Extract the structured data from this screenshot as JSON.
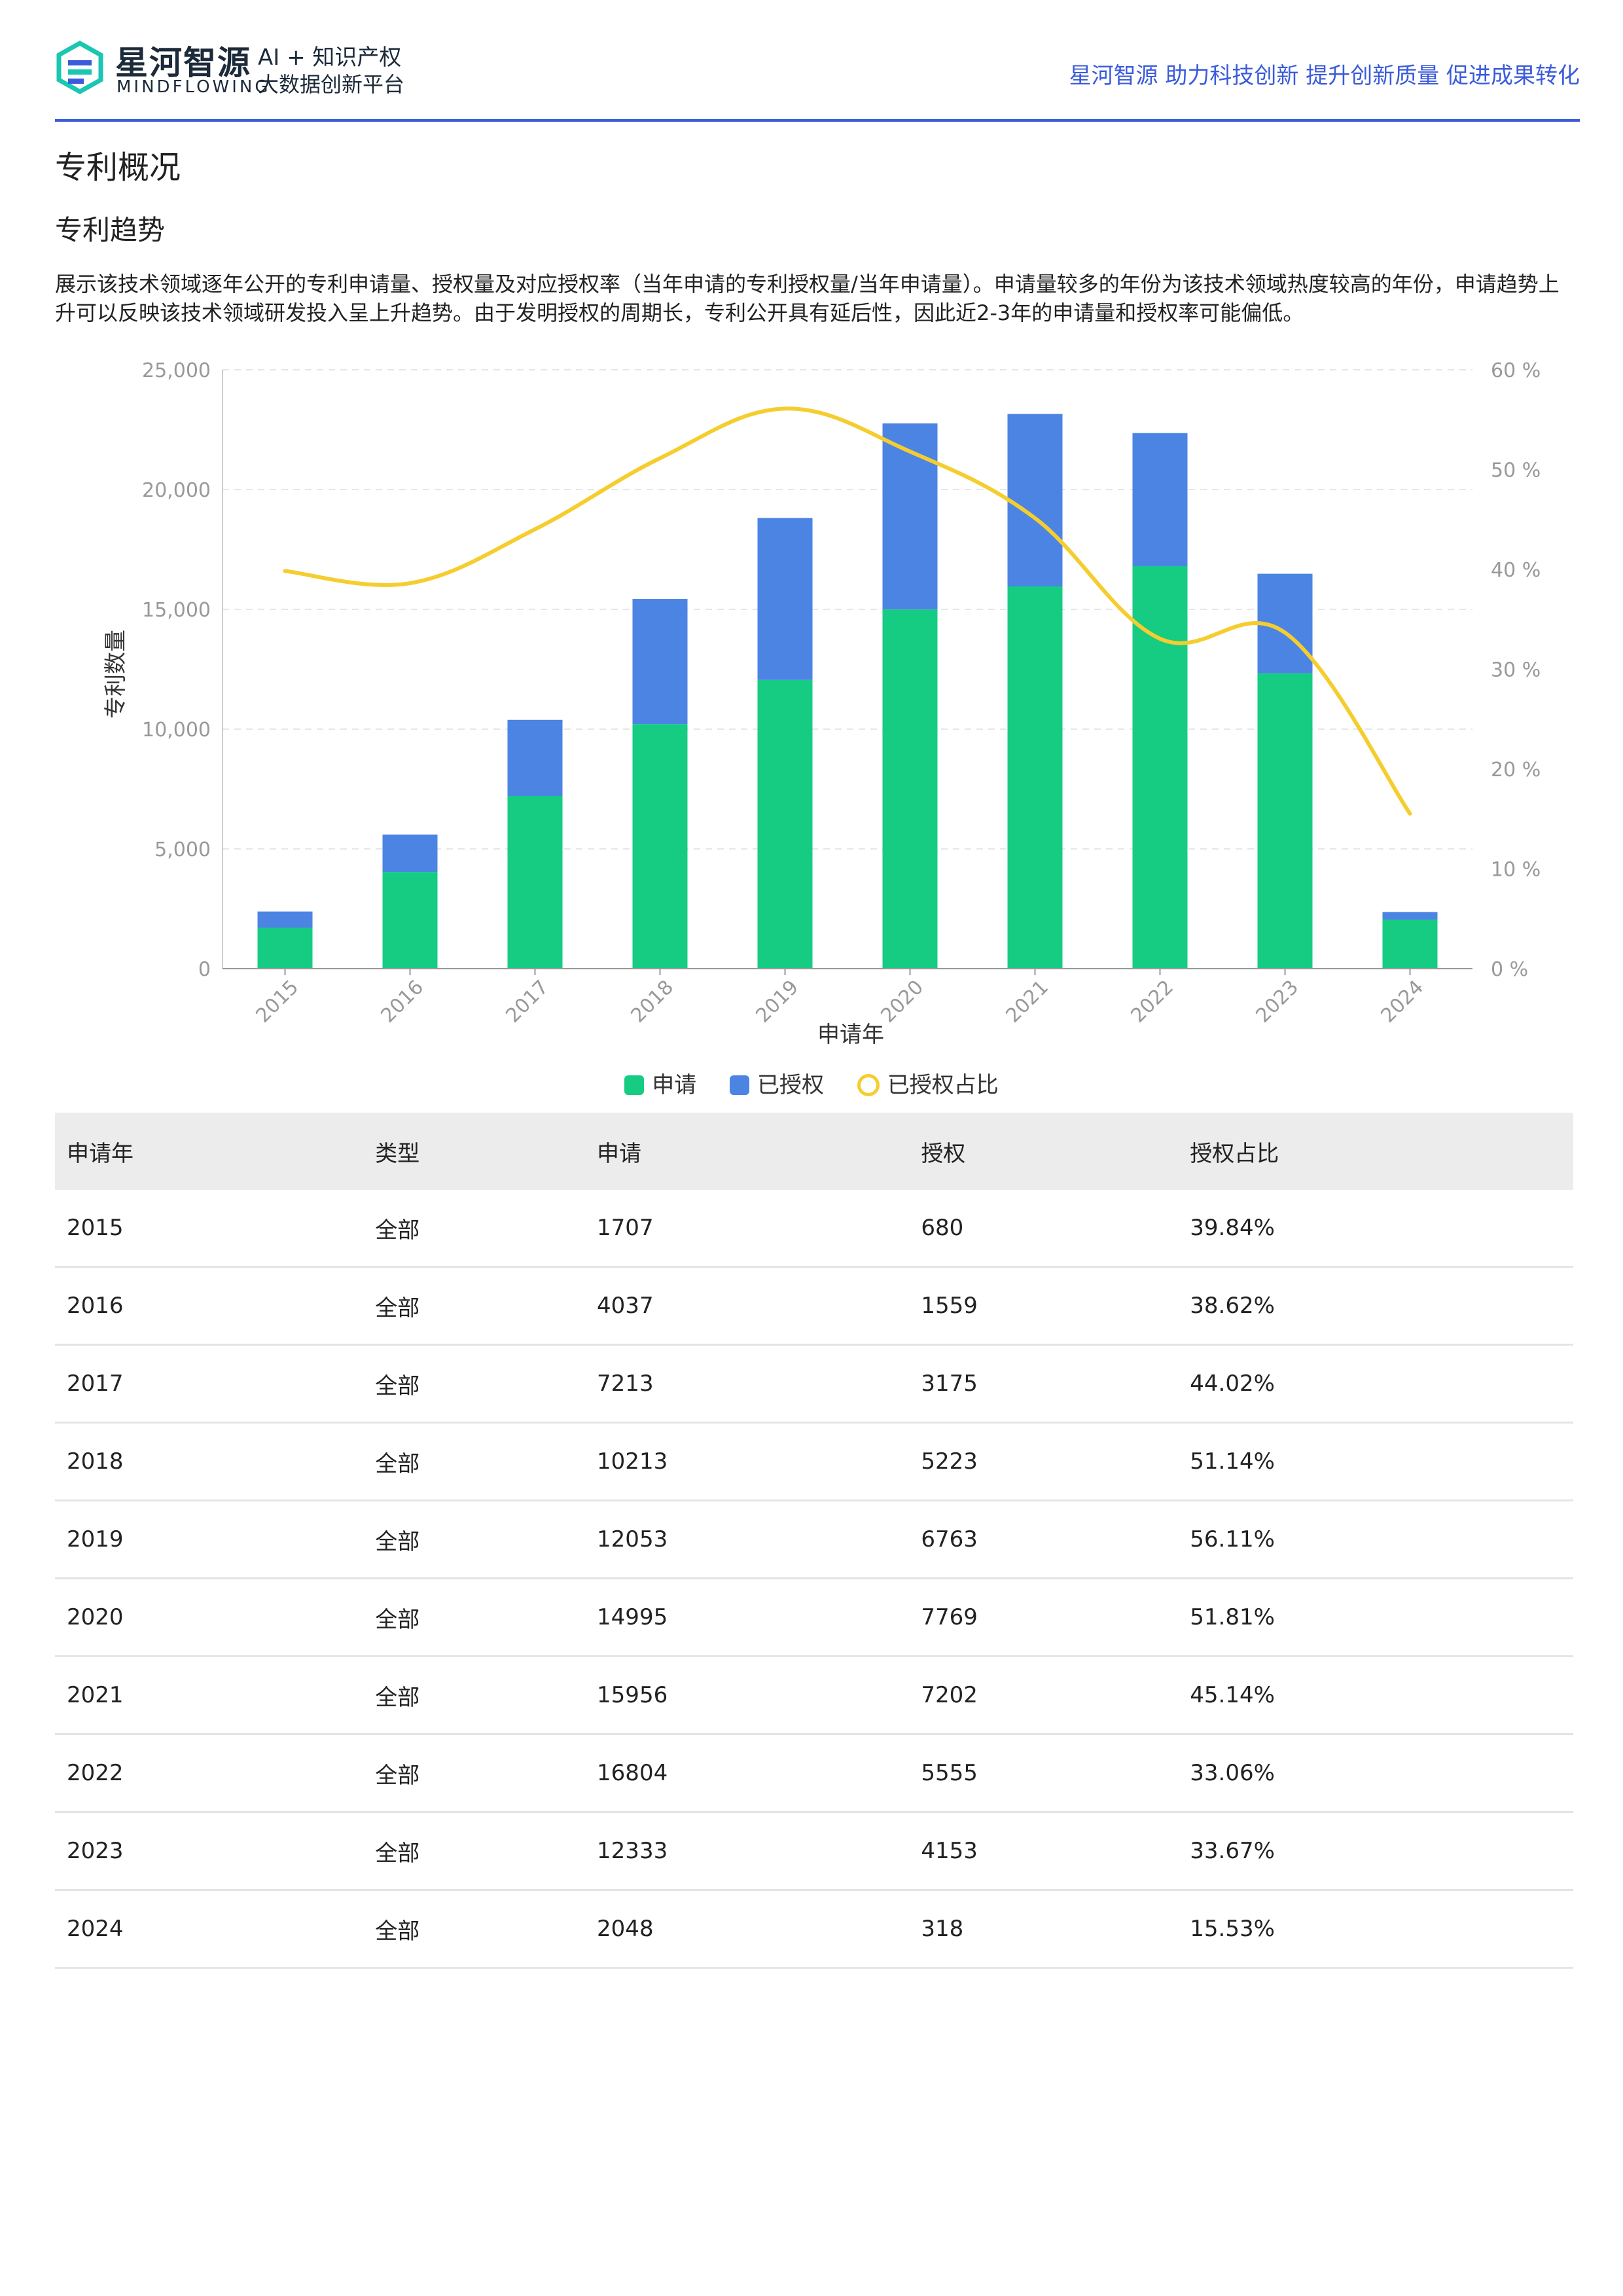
{
  "header": {
    "brand_cn": "星河智源",
    "brand_en": "MINDFLOWING",
    "tagline_1": "AI + 知识产权",
    "tagline_2": "大数据创新平台",
    "slogan": "星河智源 助力科技创新 提升创新质量 促进成果转化",
    "brand_color": "#3b5bdb"
  },
  "section_title": "专利概况",
  "subsection_title": "专利趋势",
  "description": "展示该技术领域逐年公开的专利申请量、授权量及对应授权率（当年申请的专利授权量/当年申请量）。申请量较多的年份为该技术领域热度较高的年份，申请趋势上升可以反映该技术领域研发投入呈上升趋势。由于发明授权的周期长，专利公开具有延后性，因此近2-3年的申请量和授权率可能偏低。",
  "chart_data": {
    "type": "bar",
    "stacked": true,
    "categories": [
      "2015",
      "2016",
      "2017",
      "2018",
      "2019",
      "2020",
      "2021",
      "2022",
      "2023",
      "2024"
    ],
    "series": [
      {
        "name": "申请",
        "type": "bar",
        "axis": "left",
        "color": "#16cc83",
        "values": [
          1707,
          4037,
          7213,
          10213,
          12053,
          14995,
          15956,
          16804,
          12333,
          2048
        ]
      },
      {
        "name": "已授权",
        "type": "bar",
        "axis": "left",
        "color": "#4c84e4",
        "values": [
          680,
          1559,
          3175,
          5223,
          6763,
          7769,
          7202,
          5555,
          4153,
          318
        ]
      },
      {
        "name": "已授权占比",
        "type": "line",
        "axis": "right",
        "color": "#f5cd2e",
        "values": [
          39.84,
          38.62,
          44.02,
          51.14,
          56.11,
          51.81,
          45.14,
          33.06,
          33.67,
          15.53
        ]
      }
    ],
    "xlabel": "申请年",
    "ylabel": "专利数量",
    "ylim": [
      0,
      25000
    ],
    "y_ticks": [
      "0",
      "5,000",
      "10,000",
      "15,000",
      "20,000",
      "25,000"
    ],
    "y2lim": [
      0,
      60
    ],
    "y2_ticks": [
      "0 %",
      "10 %",
      "20 %",
      "30 %",
      "40 %",
      "50 %",
      "60 %"
    ],
    "grid": true,
    "legend_position": "bottom"
  },
  "table": {
    "headers": [
      "申请年",
      "类型",
      "申请",
      "授权",
      "授权占比"
    ],
    "rows": [
      [
        "2015",
        "全部",
        "1707",
        "680",
        "39.84%"
      ],
      [
        "2016",
        "全部",
        "4037",
        "1559",
        "38.62%"
      ],
      [
        "2017",
        "全部",
        "7213",
        "3175",
        "44.02%"
      ],
      [
        "2018",
        "全部",
        "10213",
        "5223",
        "51.14%"
      ],
      [
        "2019",
        "全部",
        "12053",
        "6763",
        "56.11%"
      ],
      [
        "2020",
        "全部",
        "14995",
        "7769",
        "51.81%"
      ],
      [
        "2021",
        "全部",
        "15956",
        "7202",
        "45.14%"
      ],
      [
        "2022",
        "全部",
        "16804",
        "5555",
        "33.06%"
      ],
      [
        "2023",
        "全部",
        "12333",
        "4153",
        "33.67%"
      ],
      [
        "2024",
        "全部",
        "2048",
        "318",
        "15.53%"
      ]
    ]
  }
}
